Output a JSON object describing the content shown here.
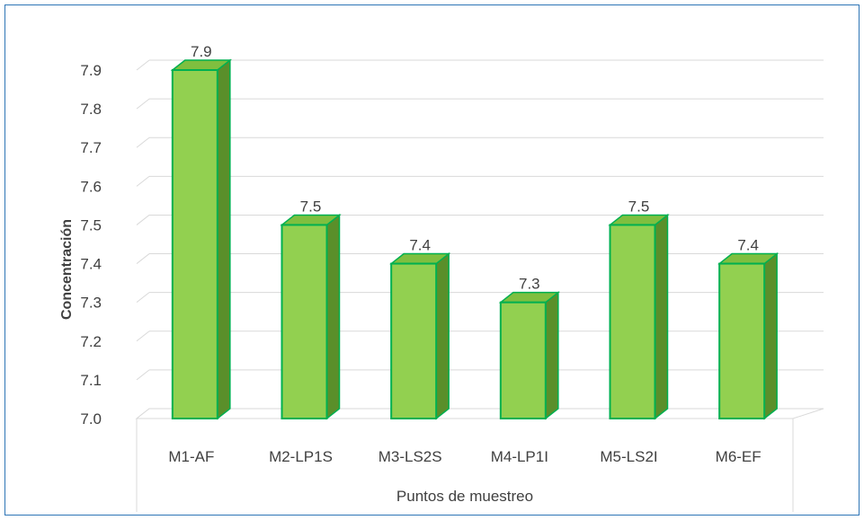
{
  "chart_data": {
    "type": "bar",
    "title": "",
    "xlabel": "Puntos de muestreo",
    "ylabel": "Concentración",
    "categories": [
      "M1-AF",
      "M2-LP1S",
      "M3-LS2S",
      "M4-LP1I",
      "M5-LS2I",
      "M6-EF"
    ],
    "values": [
      7.9,
      7.5,
      7.4,
      7.3,
      7.5,
      7.4
    ],
    "data_labels": [
      "7.9",
      "7.5",
      "7.4",
      "7.3",
      "7.5",
      "7.4"
    ],
    "yticks": [
      "7.0",
      "7.1",
      "7.2",
      "7.3",
      "7.4",
      "7.5",
      "7.6",
      "7.7",
      "7.8",
      "7.9"
    ],
    "ylim": [
      7.0,
      7.9
    ],
    "grid": true,
    "legend": "none",
    "style": "3d-column",
    "colors": {
      "bar_front": "#92d050",
      "bar_top": "#7fbf3f",
      "bar_side": "#5a8f2a",
      "bar_outline": "#00b050",
      "grid": "#d9d9d9",
      "frame": "#2e75b6"
    }
  }
}
